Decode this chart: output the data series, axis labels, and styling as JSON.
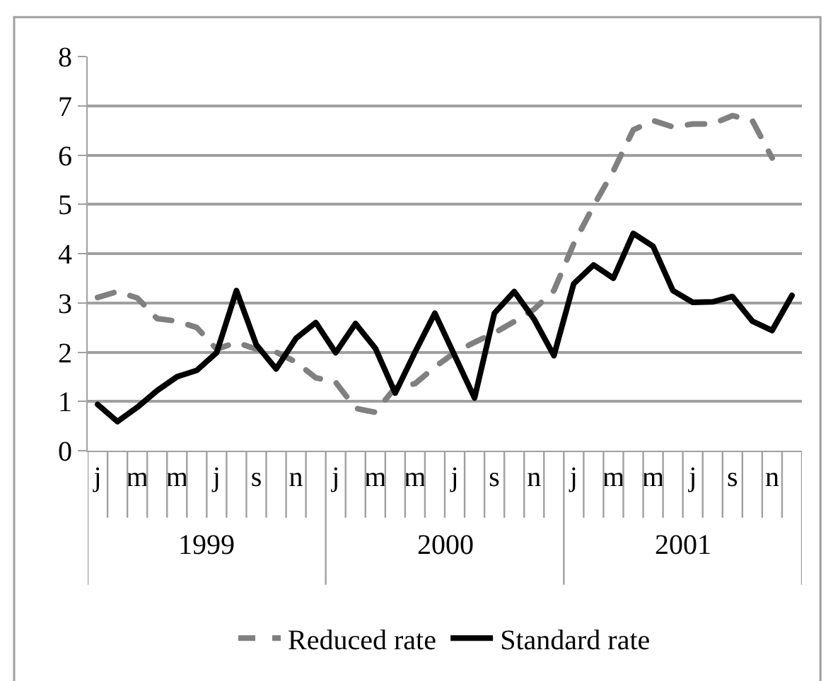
{
  "chart_data": {
    "type": "line",
    "categories": [
      "j",
      null,
      "m",
      null,
      "m",
      null,
      "j",
      null,
      "s",
      null,
      "n",
      null,
      "j",
      null,
      "m",
      null,
      "m",
      null,
      "j",
      null,
      "s",
      null,
      "n",
      null,
      "j",
      null,
      "m",
      null,
      "m",
      null,
      "j",
      null,
      "s",
      null,
      "n",
      null
    ],
    "annotations": [
      "1999",
      "2000",
      "2001"
    ],
    "series": [
      {
        "name": "Reduced rate",
        "color": "#808080",
        "line_style": "dashed",
        "values": [
          3.11,
          3.23,
          3.1,
          2.68,
          2.63,
          2.5,
          2.06,
          2.2,
          2.06,
          2.0,
          1.8,
          1.48,
          1.39,
          0.86,
          0.78,
          1.28,
          1.36,
          1.7,
          1.99,
          2.2,
          2.39,
          2.62,
          2.87,
          3.25,
          4.2,
          4.97,
          5.68,
          6.51,
          6.7,
          6.57,
          6.63,
          6.63,
          6.8,
          6.7,
          5.94,
          null
        ]
      },
      {
        "name": "Standard rate",
        "color": "#000000",
        "line_style": "solid",
        "values": [
          0.94,
          0.59,
          0.88,
          1.22,
          1.5,
          1.63,
          1.99,
          3.25,
          2.15,
          1.66,
          2.28,
          2.6,
          1.99,
          2.58,
          2.08,
          1.17,
          2.0,
          2.79,
          1.93,
          1.07,
          2.79,
          3.23,
          2.67,
          1.93,
          3.39,
          3.77,
          3.5,
          4.41,
          4.15,
          3.25,
          3.01,
          3.02,
          3.13,
          2.63,
          2.44,
          3.15
        ]
      }
    ],
    "ylim": [
      0,
      8
    ],
    "yticks": [
      0,
      1,
      2,
      3,
      4,
      5,
      6,
      7,
      8
    ],
    "grid": "y",
    "legend": "bottom",
    "marker": "none"
  }
}
